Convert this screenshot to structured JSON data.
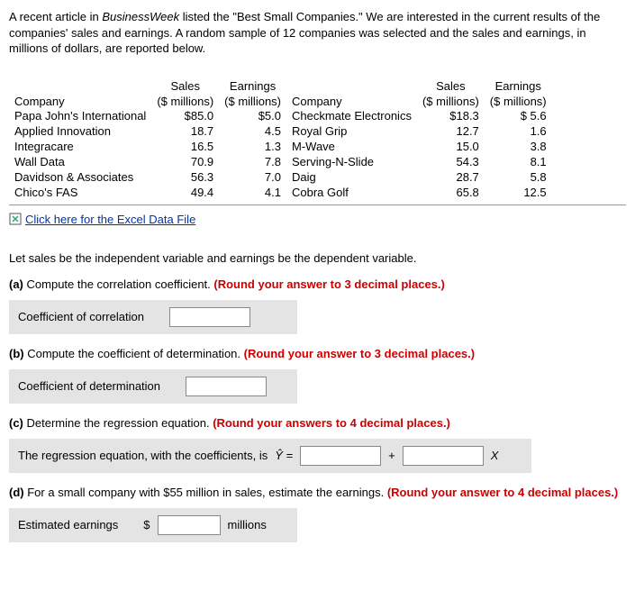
{
  "intro": {
    "prefix": "A recent article in ",
    "journal": "BusinessWeek",
    "rest": " listed the \"Best Small Companies.\" We are interested in the current results of the companies' sales and earnings. A random sample of 12 companies was selected and the sales and earnings, in millions of dollars, are reported below."
  },
  "table": {
    "headers": {
      "company": "Company",
      "sales": "Sales",
      "sales_unit": "($ millions)",
      "earnings": "Earnings",
      "earnings_unit": "($ millions)"
    },
    "left": [
      {
        "company": "Papa John's International",
        "sales": "$85.0",
        "earnings": "$5.0"
      },
      {
        "company": "Applied Innovation",
        "sales": "18.7",
        "earnings": "4.5"
      },
      {
        "company": "Integracare",
        "sales": "16.5",
        "earnings": "1.3"
      },
      {
        "company": "Wall Data",
        "sales": "70.9",
        "earnings": "7.8"
      },
      {
        "company": "Davidson & Associates",
        "sales": "56.3",
        "earnings": "7.0"
      },
      {
        "company": "Chico's FAS",
        "sales": "49.4",
        "earnings": "4.1"
      }
    ],
    "right": [
      {
        "company": "Checkmate Electronics",
        "sales": "$18.3",
        "earnings": "$ 5.6"
      },
      {
        "company": "Royal Grip",
        "sales": "12.7",
        "earnings": "1.6"
      },
      {
        "company": "M-Wave",
        "sales": "15.0",
        "earnings": "3.8"
      },
      {
        "company": "Serving-N-Slide",
        "sales": "54.3",
        "earnings": "8.1"
      },
      {
        "company": "Daig",
        "sales": "28.7",
        "earnings": "5.8"
      },
      {
        "company": "Cobra Golf",
        "sales": "65.8",
        "earnings": "12.5"
      }
    ]
  },
  "excel_link": "Click here for the Excel Data File",
  "statement": "Let sales be the independent variable and earnings be the dependent variable.",
  "parts": {
    "a": {
      "label": "(a)",
      "text": "Compute the correlation coefficient. ",
      "hint": "(Round your answer to 3 decimal places.)",
      "answer_label": "Coefficient of correlation"
    },
    "b": {
      "label": "(b)",
      "text": "Compute the coefficient of determination. ",
      "hint": "(Round your answer to 3 decimal places.)",
      "answer_label": "Coefficient of determination"
    },
    "c": {
      "label": "(c)",
      "text": "Determine the regression equation. ",
      "hint": "(Round your answers to 4 decimal places.)",
      "answer_label": "The regression equation, with the coefficients, is ",
      "yhat": "Ŷ =",
      "plus": "+",
      "x": "X"
    },
    "d": {
      "label": "(d)",
      "text": "For a small company with $55 million in sales, estimate the earnings. ",
      "hint": "(Round your answer to 4 decimal places.)",
      "answer_label": "Estimated earnings",
      "dollar": "$",
      "millions": "millions"
    }
  }
}
